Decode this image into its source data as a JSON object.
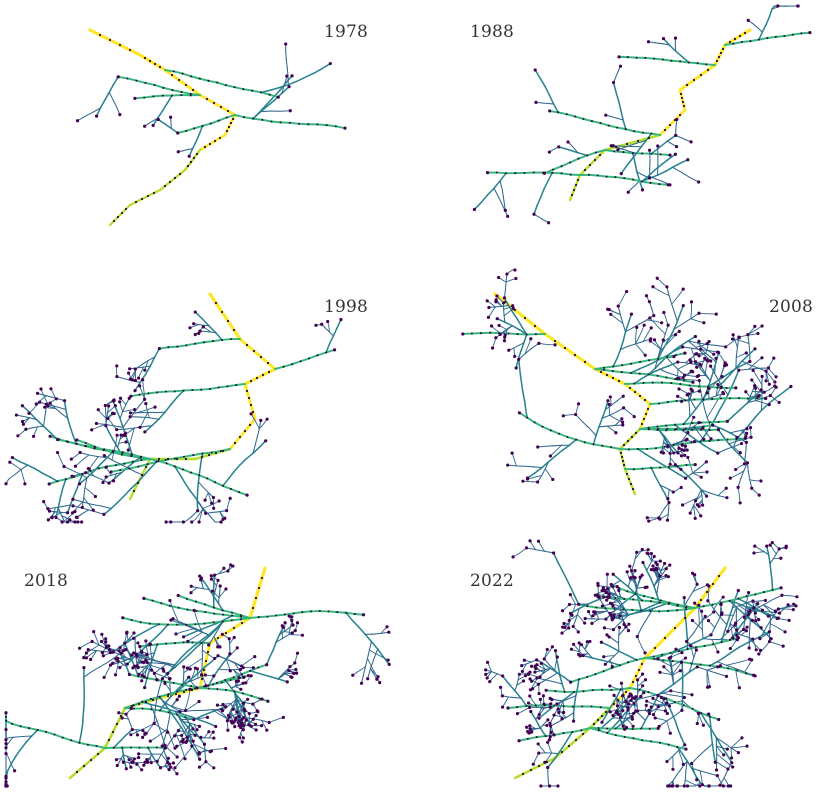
{
  "figure": {
    "panels": [
      {
        "id": "p1978",
        "year": "1978",
        "seed": 11,
        "depth": 3,
        "branches": 5,
        "leafDensity": 0.6
      },
      {
        "id": "p1988",
        "year": "1988",
        "seed": 23,
        "depth": 3,
        "branches": 7,
        "leafDensity": 0.9
      },
      {
        "id": "p1998",
        "year": "1998",
        "seed": 37,
        "depth": 4,
        "branches": 9,
        "leafDensity": 1.1
      },
      {
        "id": "p2008",
        "year": "2008",
        "seed": 51,
        "depth": 4,
        "branches": 11,
        "leafDensity": 1.4
      },
      {
        "id": "p2018",
        "year": "2018",
        "seed": 67,
        "depth": 4,
        "branches": 12,
        "leafDensity": 1.6
      },
      {
        "id": "p2022",
        "year": "2022",
        "seed": 83,
        "depth": 4,
        "branches": 13,
        "leafDensity": 1.8
      }
    ],
    "colors": {
      "trunk": "#fde725",
      "high": "#b5de2b",
      "mid": "#35b779",
      "teal": "#26828e",
      "low": "#31688e",
      "leaf": "#440154",
      "node_dark": "#2b0a3d"
    }
  }
}
